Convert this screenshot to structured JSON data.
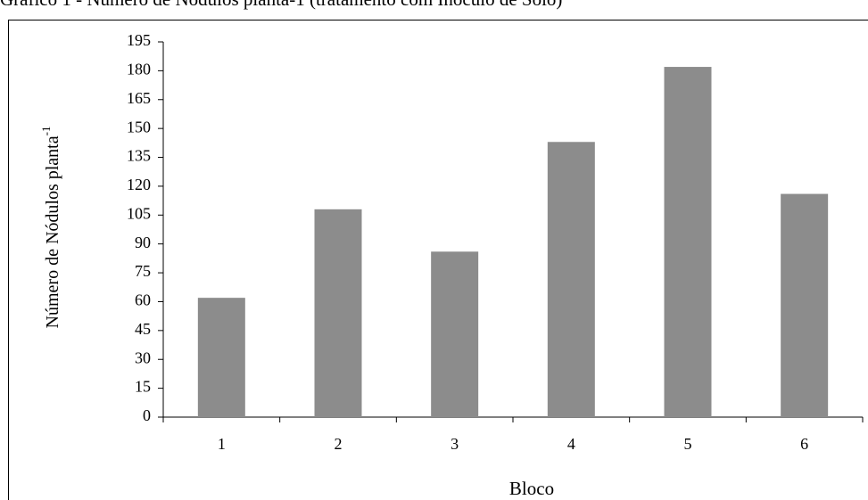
{
  "chart_data": {
    "type": "bar",
    "title": "Gráfico 1 - Número de Nódulos planta-1 (tratamento com Inóculo de Solo)",
    "x_label": "Bloco",
    "y_label": "Número de Nódulos planta",
    "y_label_superscript": "-1",
    "categories": [
      "1",
      "2",
      "3",
      "4",
      "5",
      "6"
    ],
    "values": [
      62,
      108,
      86,
      143,
      182,
      116
    ],
    "color": "#8c8c8c",
    "ylim": [
      0,
      195
    ],
    "yticks": [
      0,
      15,
      30,
      45,
      60,
      75,
      90,
      105,
      120,
      135,
      150,
      165,
      180,
      195
    ],
    "grid": false
  }
}
